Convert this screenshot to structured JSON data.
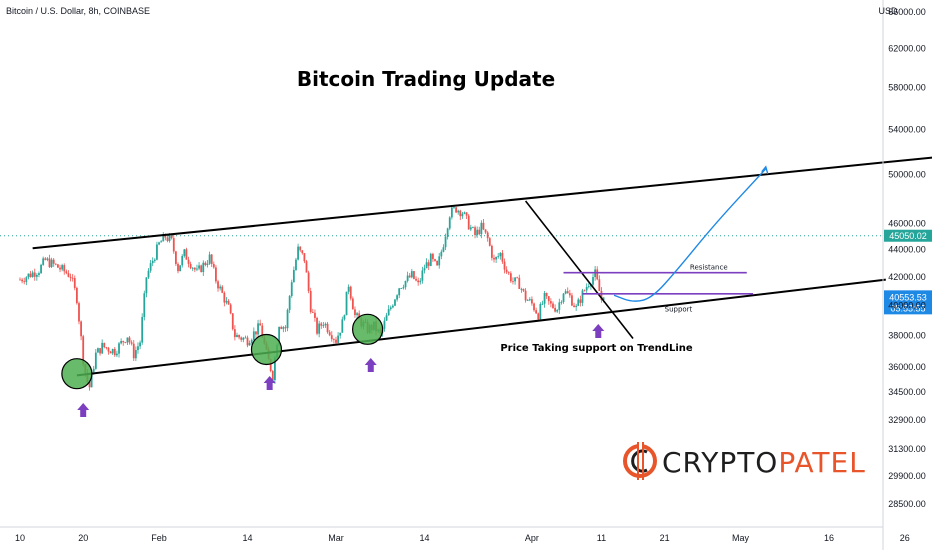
{
  "header": {
    "symbol": "Bitcoin / U.S. Dollar, 8h, COINBASE",
    "currency": "USD"
  },
  "annotations": {
    "title": "Bitcoin Trading Update",
    "resistance_label": "Resistance",
    "support_label": "Support",
    "trendline_note": "Price Taking support on TrendLine"
  },
  "logo": {
    "part1": "CRYPTO",
    "part2": "PATEL"
  },
  "colors": {
    "up": "#26a69a",
    "down": "#ef5350",
    "level_line": "#7b3fc0",
    "arrow": "#7b3fc0",
    "projection": "#1e88e5",
    "circle_fill": "#4caf50",
    "price_badge": "#1e88e5",
    "logo_dark": "#1e1e1e",
    "logo_accent": "#e8552b"
  },
  "chart_data": {
    "type": "candlestick",
    "symbol": "BTCUSD",
    "exchange": "COINBASE",
    "timeframe": "8h",
    "y_axis": {
      "scale": "log",
      "ticks": [
        28500,
        29900,
        31300,
        32900,
        34500,
        36000,
        38000,
        40000,
        42000,
        44000,
        46000,
        50000,
        54000,
        58000,
        62000,
        66000
      ],
      "tick_labels": [
        "28500.00",
        "29900.00",
        "31300.00",
        "32900.00",
        "34500.00",
        "36000.00",
        "38000.00",
        "40000.00",
        "42000.00",
        "44000.00",
        "46000.00",
        "50000.00",
        "54000.00",
        "58000.00",
        "62000.00",
        "66000.00"
      ],
      "range": [
        27800,
        67500
      ]
    },
    "x_axis": {
      "tick_labels": [
        "10",
        "20",
        "Feb",
        "14",
        "Mar",
        "14",
        "Apr",
        "11",
        "21",
        "May",
        "16",
        "26"
      ],
      "tick_pos": [
        0,
        10,
        22,
        36,
        50,
        64,
        81,
        92,
        102,
        114,
        128,
        140
      ]
    },
    "price_path": [
      [
        0,
        41800
      ],
      [
        3,
        42500
      ],
      [
        4,
        43200
      ],
      [
        6,
        42700
      ],
      [
        8,
        42100
      ],
      [
        9,
        40500
      ],
      [
        10,
        36500
      ],
      [
        10.5,
        35300
      ],
      [
        11,
        34800
      ],
      [
        12,
        36800
      ],
      [
        13,
        37300
      ],
      [
        15,
        37000
      ],
      [
        17,
        38000
      ],
      [
        18,
        36800
      ],
      [
        19,
        37600
      ],
      [
        20,
        42000
      ],
      [
        21,
        43200
      ],
      [
        22,
        44400
      ],
      [
        23,
        45000
      ],
      [
        24,
        44600
      ],
      [
        25,
        42600
      ],
      [
        26,
        43700
      ],
      [
        28,
        42300
      ],
      [
        30,
        43400
      ],
      [
        31,
        41800
      ],
      [
        33,
        39800
      ],
      [
        34,
        38000
      ],
      [
        36,
        37700
      ],
      [
        38,
        38600
      ],
      [
        39,
        36800
      ],
      [
        40,
        35500
      ],
      [
        41,
        38800
      ],
      [
        42,
        38500
      ],
      [
        43,
        41800
      ],
      [
        44,
        44000
      ],
      [
        45,
        43300
      ],
      [
        46,
        39900
      ],
      [
        47,
        38300
      ],
      [
        48,
        38900
      ],
      [
        49,
        38300
      ],
      [
        50,
        37700
      ],
      [
        51,
        38800
      ],
      [
        52,
        41500
      ],
      [
        53,
        39300
      ],
      [
        55,
        38400
      ],
      [
        56,
        38600
      ],
      [
        57,
        38000
      ],
      [
        58,
        39200
      ],
      [
        60,
        41300
      ],
      [
        62,
        42100
      ],
      [
        63,
        41400
      ],
      [
        64,
        42700
      ],
      [
        65,
        43300
      ],
      [
        66,
        42600
      ],
      [
        67,
        44500
      ],
      [
        68,
        46800
      ],
      [
        69,
        47200
      ],
      [
        70,
        46900
      ],
      [
        71,
        45900
      ],
      [
        72,
        45100
      ],
      [
        73,
        45700
      ],
      [
        74,
        44800
      ],
      [
        75,
        43100
      ],
      [
        76,
        43700
      ],
      [
        77,
        42400
      ],
      [
        78,
        41700
      ],
      [
        79,
        41500
      ],
      [
        80,
        40500
      ],
      [
        81,
        40100
      ],
      [
        82,
        39400
      ],
      [
        83,
        40500
      ],
      [
        84,
        40000
      ],
      [
        85,
        39800
      ],
      [
        86,
        41000
      ],
      [
        87,
        40600
      ],
      [
        88,
        39800
      ],
      [
        89,
        40800
      ],
      [
        90,
        41600
      ],
      [
        91,
        42200
      ],
      [
        92,
        40400
      ],
      [
        92.5,
        40553.53
      ]
    ],
    "current_price": 40553.53,
    "current_price_label": "40553.53",
    "countdown_label": "05:53:55",
    "dotted_level": 45050.02,
    "dotted_level_label": "45050.02",
    "levels": {
      "resistance": 42300,
      "support": 40800
    },
    "channel": {
      "upper": [
        [
          2,
          44100
        ],
        [
          150,
          51800
        ]
      ],
      "lower": [
        [
          9,
          35500
        ],
        [
          137,
          41800
        ]
      ],
      "descending_line": [
        [
          80,
          47800
        ],
        [
          97,
          37800
        ]
      ]
    },
    "projection_path": [
      [
        94,
        40700
      ],
      [
        97,
        40200
      ],
      [
        100,
        40500
      ],
      [
        104,
        42500
      ],
      [
        110,
        46000
      ],
      [
        118,
        50500
      ]
    ],
    "support_touches": [
      {
        "x": 9,
        "y": 35600
      },
      {
        "x": 39,
        "y": 37100
      },
      {
        "x": 55,
        "y": 38400
      }
    ],
    "arrows_up": [
      10,
      39.5,
      55.5,
      91.5
    ]
  }
}
